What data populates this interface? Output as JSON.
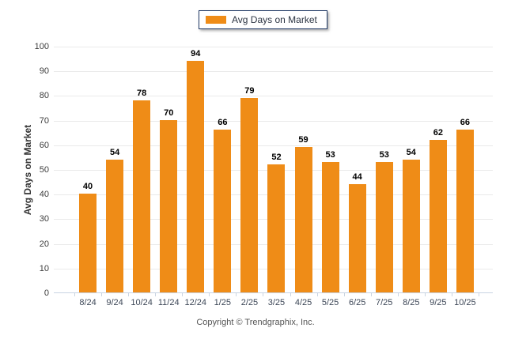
{
  "chart_data": {
    "type": "bar",
    "title": "Avg Days on Market",
    "legend": "Avg Days on Market",
    "ylabel": "Avg Days on Market",
    "xlabel": "",
    "categories": [
      "8/24",
      "9/24",
      "10/24",
      "11/24",
      "12/24",
      "1/25",
      "2/25",
      "3/25",
      "4/25",
      "5/25",
      "6/25",
      "7/25",
      "8/25",
      "9/25",
      "10/25"
    ],
    "values": [
      40,
      54,
      78,
      70,
      94,
      66,
      79,
      52,
      59,
      53,
      44,
      53,
      54,
      62,
      66
    ],
    "ylim": [
      0,
      100
    ],
    "ytick_step": 10,
    "grid": true,
    "legend_position": "top-center",
    "bar_color": "#ef8c17"
  },
  "colors": {
    "bar": "#ef8c17",
    "gridline": "#eaeaea",
    "axis_line": "#c9d4e2",
    "legend_border": "#1f3864",
    "value_label": "#000000",
    "x_tick_text": "#3d4757",
    "y_tick_text": "#3d3d3d"
  },
  "footer": {
    "copyright": "Copyright © Trendgraphix, Inc."
  }
}
